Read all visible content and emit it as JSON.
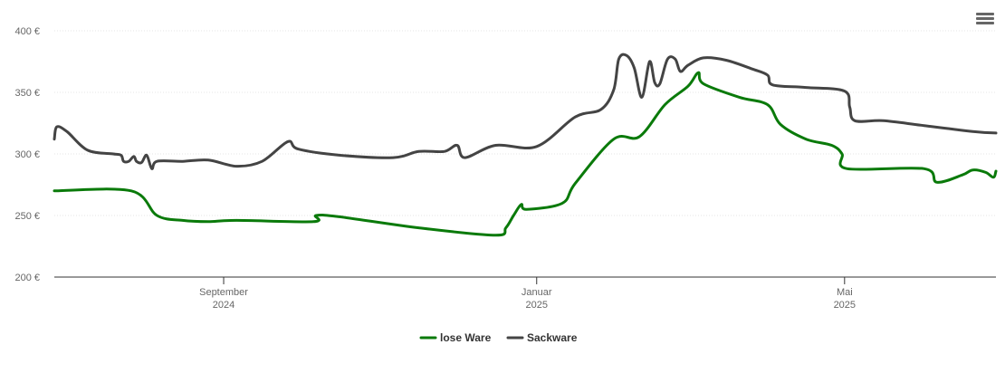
{
  "menu": {
    "icon": "hamburger-menu-icon"
  },
  "chart_data": {
    "type": "line",
    "y_range": [
      200,
      400
    ],
    "y_ticks": [
      {
        "value": 400,
        "label": "400 €"
      },
      {
        "value": 350,
        "label": "350 €"
      },
      {
        "value": 300,
        "label": "300 €"
      },
      {
        "value": 250,
        "label": "250 €"
      },
      {
        "value": 200,
        "label": "200 €"
      }
    ],
    "x_range": [
      "2024-06-27",
      "2025-06-29"
    ],
    "x_ticks": [
      {
        "date": "2024-09-01",
        "line1": "September",
        "line2": "2024"
      },
      {
        "date": "2025-01-01",
        "line1": "Januar",
        "line2": "2025"
      },
      {
        "date": "2025-05-01",
        "line1": "Mai",
        "line2": "2025"
      }
    ],
    "grid": true,
    "legend": "bottom-center",
    "series": [
      {
        "name": "lose Ware",
        "color": "#0a7a0a",
        "points": [
          [
            "2024-06-27",
            270
          ],
          [
            "2024-07-27",
            270
          ],
          [
            "2024-08-06",
            250
          ],
          [
            "2024-08-16",
            246
          ],
          [
            "2024-08-26",
            245
          ],
          [
            "2024-09-06",
            246
          ],
          [
            "2024-10-06",
            245
          ],
          [
            "2024-10-07",
            250
          ],
          [
            "2024-10-16",
            249
          ],
          [
            "2024-11-16",
            240
          ],
          [
            "2024-12-16",
            234
          ],
          [
            "2024-12-20",
            240
          ],
          [
            "2024-12-23",
            250
          ],
          [
            "2024-12-26",
            259
          ],
          [
            "2024-12-28",
            255
          ],
          [
            "2025-01-11",
            260
          ],
          [
            "2025-01-16",
            276
          ],
          [
            "2025-01-31",
            312
          ],
          [
            "2025-02-10",
            314
          ],
          [
            "2025-02-20",
            340
          ],
          [
            "2025-03-01",
            355
          ],
          [
            "2025-03-05",
            366
          ],
          [
            "2025-03-07",
            357
          ],
          [
            "2025-03-21",
            346
          ],
          [
            "2025-04-01",
            340
          ],
          [
            "2025-04-06",
            324
          ],
          [
            "2025-04-16",
            312
          ],
          [
            "2025-04-26",
            307
          ],
          [
            "2025-04-30",
            300
          ],
          [
            "2025-05-02",
            288
          ],
          [
            "2025-06-01",
            288
          ],
          [
            "2025-06-06",
            277
          ],
          [
            "2025-06-16",
            283
          ],
          [
            "2025-06-20",
            287
          ],
          [
            "2025-06-25",
            285
          ],
          [
            "2025-06-28",
            281
          ],
          [
            "2025-06-29",
            286
          ]
        ]
      },
      {
        "name": "Sackware",
        "color": "#444444",
        "points": [
          [
            "2024-06-27",
            312
          ],
          [
            "2024-06-28",
            322
          ],
          [
            "2024-07-02",
            318
          ],
          [
            "2024-07-10",
            303
          ],
          [
            "2024-07-20",
            300
          ],
          [
            "2024-07-23",
            299
          ],
          [
            "2024-07-24",
            294
          ],
          [
            "2024-07-26",
            294
          ],
          [
            "2024-07-28",
            298
          ],
          [
            "2024-07-29",
            294
          ],
          [
            "2024-07-31",
            293
          ],
          [
            "2024-08-02",
            299
          ],
          [
            "2024-08-04",
            288
          ],
          [
            "2024-08-06",
            294
          ],
          [
            "2024-08-16",
            294
          ],
          [
            "2024-08-26",
            295
          ],
          [
            "2024-09-06",
            290
          ],
          [
            "2024-09-16",
            294
          ],
          [
            "2024-09-26",
            310
          ],
          [
            "2024-09-30",
            304
          ],
          [
            "2024-10-16",
            299
          ],
          [
            "2024-11-06",
            297
          ],
          [
            "2024-11-16",
            302
          ],
          [
            "2024-11-26",
            302
          ],
          [
            "2024-12-01",
            307
          ],
          [
            "2024-12-04",
            297
          ],
          [
            "2024-12-16",
            307
          ],
          [
            "2025-01-01",
            306
          ],
          [
            "2025-01-16",
            330
          ],
          [
            "2025-01-26",
            336
          ],
          [
            "2025-01-31",
            352
          ],
          [
            "2025-02-02",
            377
          ],
          [
            "2025-02-05",
            380
          ],
          [
            "2025-02-08",
            370
          ],
          [
            "2025-02-11",
            346
          ],
          [
            "2025-02-14",
            375
          ],
          [
            "2025-02-16",
            358
          ],
          [
            "2025-02-18",
            357
          ],
          [
            "2025-02-21",
            377
          ],
          [
            "2025-02-24",
            377
          ],
          [
            "2025-02-26",
            367
          ],
          [
            "2025-03-01",
            372
          ],
          [
            "2025-03-07",
            378
          ],
          [
            "2025-03-16",
            376
          ],
          [
            "2025-03-26",
            369
          ],
          [
            "2025-04-01",
            364
          ],
          [
            "2025-04-03",
            356
          ],
          [
            "2025-04-16",
            354
          ],
          [
            "2025-05-01",
            351
          ],
          [
            "2025-05-03",
            338
          ],
          [
            "2025-05-05",
            327
          ],
          [
            "2025-05-16",
            327
          ],
          [
            "2025-06-01",
            323
          ],
          [
            "2025-06-21",
            318
          ],
          [
            "2025-06-29",
            317
          ]
        ]
      }
    ]
  }
}
